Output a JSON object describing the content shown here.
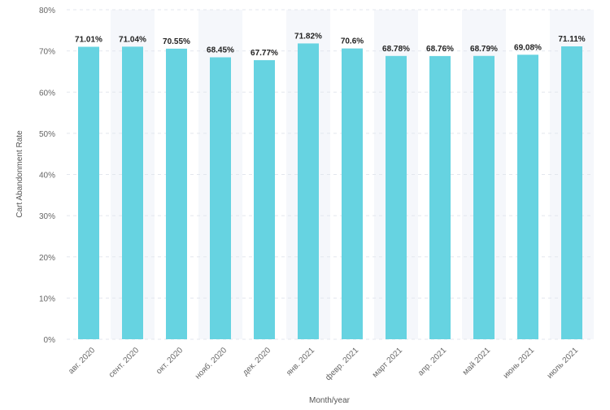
{
  "chart_data": {
    "type": "bar",
    "title": "",
    "xlabel": "Month/year",
    "ylabel": "Cart Abandonment Rate",
    "ylim": [
      0,
      80
    ],
    "y_ticks": [
      "0%",
      "10%",
      "20%",
      "30%",
      "40%",
      "50%",
      "60%",
      "70%",
      "80%"
    ],
    "grid": true,
    "categories": [
      "авг. 2020",
      "сент. 2020",
      "окт. 2020",
      "нояб. 2020",
      "дек. 2020",
      "янв. 2021",
      "февр. 2021",
      "март 2021",
      "апр. 2021",
      "май 2021",
      "июнь 2021",
      "июль 2021"
    ],
    "values": [
      71.01,
      71.04,
      70.55,
      68.45,
      67.77,
      71.82,
      70.6,
      68.78,
      68.76,
      68.79,
      69.08,
      71.11
    ],
    "data_labels": [
      "71.01%",
      "71.04%",
      "70.55%",
      "68.45%",
      "67.77%",
      "71.82%",
      "70.6%",
      "68.78%",
      "68.76%",
      "68.79%",
      "69.08%",
      "71.11%"
    ],
    "colors": {
      "bar": "#66d3e1",
      "band": "#f5f7fb",
      "grid": "#e3e7ee"
    }
  }
}
